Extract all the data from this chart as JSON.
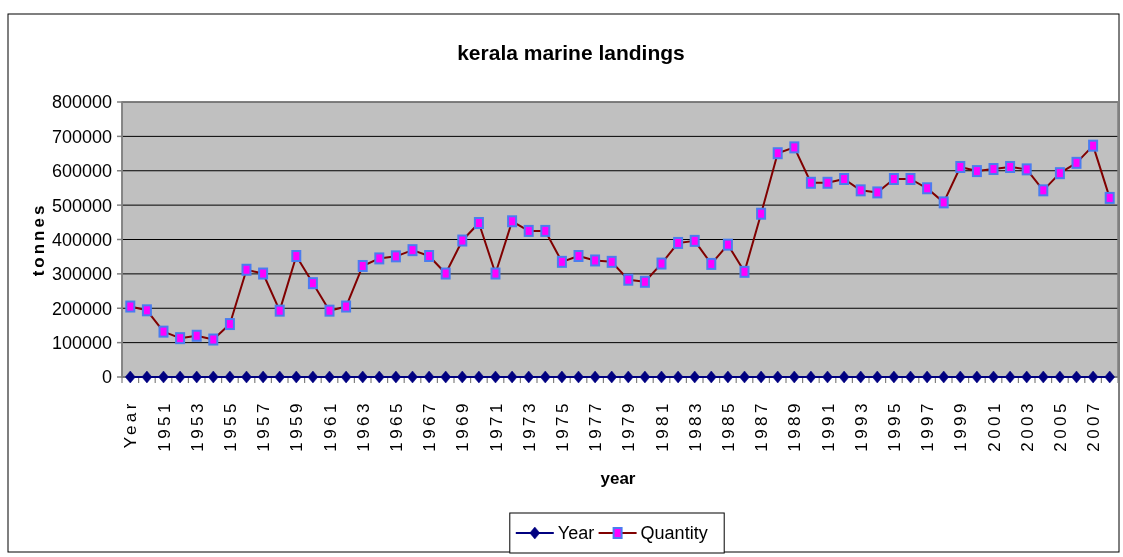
{
  "chart_data": {
    "type": "line",
    "title": "kerala marine landings",
    "xlabel": "year",
    "ylabel": "tonnes",
    "categories": [
      "Year",
      null,
      "1951",
      null,
      "1953",
      null,
      "1955",
      null,
      "1957",
      null,
      "1959",
      null,
      "1961",
      null,
      "1963",
      null,
      "1965",
      null,
      "1967",
      null,
      "1969",
      null,
      "1971",
      null,
      "1973",
      null,
      "1975",
      null,
      "1977",
      null,
      "1979",
      null,
      "1981",
      null,
      "1983",
      null,
      "1985",
      null,
      "1987",
      null,
      "1989",
      null,
      "1991",
      null,
      "1993",
      null,
      "1995",
      null,
      "1997",
      null,
      "1999",
      null,
      "2001",
      null,
      "2003",
      null,
      "2005",
      null,
      "2007",
      null
    ],
    "series": [
      {
        "name": "Year",
        "color": "#000080",
        "marker": "diamond",
        "values": [
          0,
          0,
          0,
          0,
          0,
          0,
          0,
          0,
          0,
          0,
          0,
          0,
          0,
          0,
          0,
          0,
          0,
          0,
          0,
          0,
          0,
          0,
          0,
          0,
          0,
          0,
          0,
          0,
          0,
          0,
          0,
          0,
          0,
          0,
          0,
          0,
          0,
          0,
          0,
          0,
          0,
          0,
          0,
          0,
          0,
          0,
          0,
          0,
          0,
          0,
          0,
          0,
          0,
          0,
          0,
          0,
          0,
          0,
          0,
          0
        ]
      },
      {
        "name": "Quantity",
        "color": "#800000",
        "marker": "square",
        "values": [
          205000,
          194000,
          132000,
          113000,
          120000,
          109000,
          154000,
          312000,
          301000,
          193000,
          352000,
          273000,
          193000,
          205000,
          323000,
          345000,
          351000,
          369000,
          352000,
          301000,
          397000,
          448000,
          301000,
          453000,
          425000,
          425000,
          335000,
          352000,
          339000,
          335000,
          283000,
          277000,
          330000,
          390000,
          396000,
          329000,
          385000,
          306000,
          475000,
          651000,
          668000,
          565000,
          565000,
          576000,
          543000,
          537000,
          576000,
          576000,
          549000,
          508000,
          611000,
          599000,
          605000,
          611000,
          604000,
          543000,
          593000,
          623000,
          673000,
          521000
        ]
      }
    ],
    "ylim": [
      0,
      800000
    ],
    "yticks": [
      0,
      100000,
      200000,
      300000,
      400000,
      500000,
      600000,
      700000,
      800000
    ],
    "grid": "y",
    "legend": "bottom",
    "line_style": "solid"
  }
}
